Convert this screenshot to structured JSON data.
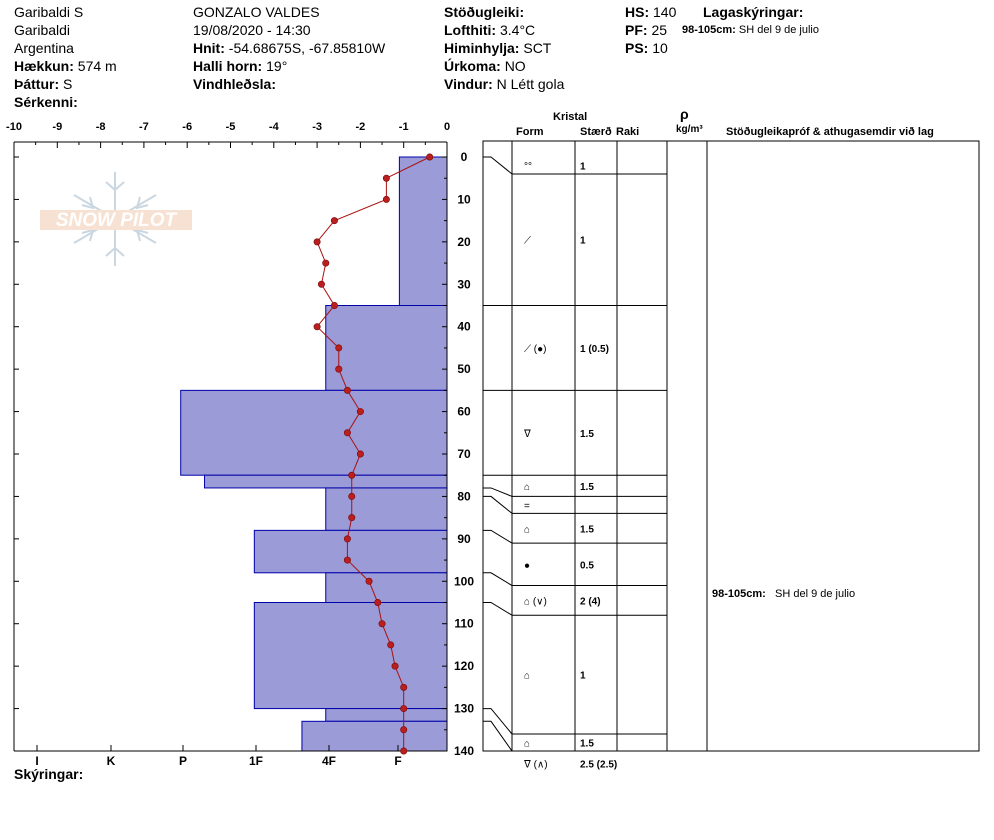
{
  "header": {
    "site_name": "Garibaldi S",
    "location": "Garibaldi",
    "country": "Argentina",
    "elevation_label": "Hækkun:",
    "elevation_value": "574 m",
    "aspect_label": "Þáttur:",
    "aspect_value": "S",
    "features_label": "Sérkenni:",
    "observer": "GONZALO VALDES",
    "datetime": "19/08/2020 - 14:30",
    "coords_label": "Hnit:",
    "coords_value": "-54.68675S, -67.85810W",
    "slope_label": "Halli horn:",
    "slope_value": "19°",
    "wind_loading_label": "Vindhleðsla:",
    "stability_label": "Stöðugleiki:",
    "air_temp_label": "Lofthiti:",
    "air_temp_value": "3.4°C",
    "sky_label": "Himinhylja:",
    "sky_value": "SCT",
    "precip_label": "Úrkoma:",
    "precip_value": "NO",
    "wind_label": "Vindur:",
    "wind_value": "N Létt gola",
    "hs_label": "HS:",
    "hs_value": "140",
    "pf_label": "PF:",
    "pf_value": "25",
    "ps_label": "PS:",
    "ps_value": "10",
    "layer_notes_label": "Lagaskýringar:",
    "layer_note_range": "98-105cm:",
    "layer_note_text": "SH del 9 de julio"
  },
  "columns": {
    "crystal": "Kristal",
    "form": "Form",
    "size": "Stærð",
    "moisture": "Raki",
    "rho": "ρ",
    "density_unit": "kg/m³",
    "stability_notes": "Stöðugleikapróf & athugasemdir við lag"
  },
  "footer": {
    "legend_label": "Skýringar:"
  },
  "logo_text": "SNOW PILOT",
  "colors": {
    "hardness_fill": "#9b9bd7",
    "hardness_stroke": "#0000aa",
    "temp_line": "#aa1111",
    "temp_marker": "#bb1e1e"
  },
  "chart_data": {
    "type": "line",
    "depth_axis": {
      "label": "",
      "ticks": [
        0,
        10,
        20,
        30,
        40,
        50,
        60,
        70,
        80,
        90,
        100,
        110,
        120,
        130,
        140
      ],
      "range": [
        0,
        140
      ]
    },
    "temperature_axis": {
      "ticks": [
        "-10",
        "-9",
        "-8",
        "-7",
        "-6",
        "-5",
        "-4",
        "-3",
        "-2",
        "-1",
        "0"
      ],
      "range": [
        -10,
        0
      ]
    },
    "hardness_scale": [
      "I",
      "K",
      "P",
      "1F",
      "4F",
      "F"
    ],
    "hardness_layers": [
      {
        "top": 0,
        "bottom": 35,
        "temp_scale_extent": -1.1
      },
      {
        "top": 35,
        "bottom": 55,
        "temp_scale_extent": -2.8
      },
      {
        "top": 55,
        "bottom": 75,
        "temp_scale_extent": -6.15
      },
      {
        "top": 75,
        "bottom": 78,
        "temp_scale_extent": -5.6
      },
      {
        "top": 78,
        "bottom": 88,
        "temp_scale_extent": -2.8
      },
      {
        "top": 88,
        "bottom": 98,
        "temp_scale_extent": -4.45
      },
      {
        "top": 98,
        "bottom": 105,
        "temp_scale_extent": -2.8
      },
      {
        "top": 105,
        "bottom": 130,
        "temp_scale_extent": -4.45
      },
      {
        "top": 130,
        "bottom": 133,
        "temp_scale_extent": -2.8
      },
      {
        "top": 133,
        "bottom": 140,
        "temp_scale_extent": -3.35
      }
    ],
    "temperature_profile": [
      {
        "depth": 0,
        "temp": -0.4
      },
      {
        "depth": 5,
        "temp": -1.4
      },
      {
        "depth": 10,
        "temp": -1.4
      },
      {
        "depth": 15,
        "temp": -2.6
      },
      {
        "depth": 20,
        "temp": -3.0
      },
      {
        "depth": 25,
        "temp": -2.8
      },
      {
        "depth": 30,
        "temp": -2.9
      },
      {
        "depth": 35,
        "temp": -2.6
      },
      {
        "depth": 40,
        "temp": -3.0
      },
      {
        "depth": 45,
        "temp": -2.5
      },
      {
        "depth": 50,
        "temp": -2.5
      },
      {
        "depth": 55,
        "temp": -2.3
      },
      {
        "depth": 60,
        "temp": -2.0
      },
      {
        "depth": 65,
        "temp": -2.3
      },
      {
        "depth": 70,
        "temp": -2.0
      },
      {
        "depth": 75,
        "temp": -2.2
      },
      {
        "depth": 80,
        "temp": -2.2
      },
      {
        "depth": 85,
        "temp": -2.2
      },
      {
        "depth": 90,
        "temp": -2.3
      },
      {
        "depth": 95,
        "temp": -2.3
      },
      {
        "depth": 100,
        "temp": -1.8
      },
      {
        "depth": 105,
        "temp": -1.6
      },
      {
        "depth": 110,
        "temp": -1.5
      },
      {
        "depth": 115,
        "temp": -1.3
      },
      {
        "depth": 120,
        "temp": -1.2
      },
      {
        "depth": 125,
        "temp": -1.0
      },
      {
        "depth": 130,
        "temp": -1.0
      },
      {
        "depth": 135,
        "temp": -1.0
      },
      {
        "depth": 140,
        "temp": -1.0
      }
    ],
    "crystal_layers": [
      {
        "top": 0,
        "bottom": 4,
        "form": "°°",
        "size": "1"
      },
      {
        "top": 4,
        "bottom": 35,
        "form": "⟋",
        "size": "1"
      },
      {
        "top": 35,
        "bottom": 55,
        "form": "⟋ (●)",
        "size": "1 (0.5)"
      },
      {
        "top": 55,
        "bottom": 75,
        "form": "ᐁ",
        "size": "1.5"
      },
      {
        "top": 75,
        "bottom": 80,
        "form": "⌂",
        "size": "1.5"
      },
      {
        "top": 80,
        "bottom": 84,
        "form": "=",
        "size": ""
      },
      {
        "top": 84,
        "bottom": 91,
        "form": "⌂",
        "size": "1.5"
      },
      {
        "top": 91,
        "bottom": 101,
        "form": "●",
        "size": "0.5"
      },
      {
        "top": 101,
        "bottom": 108,
        "form": "⌂ (∨)",
        "size": "2 (4)"
      },
      {
        "top": 108,
        "bottom": 136,
        "form": "⌂",
        "size": "1"
      },
      {
        "top": 136,
        "bottom": 140,
        "form": "⌂",
        "size": "1.5"
      },
      {
        "top": 140,
        "bottom": 146,
        "form": "ᐁ (∧)",
        "size": "2.5 (2.5)"
      }
    ]
  }
}
